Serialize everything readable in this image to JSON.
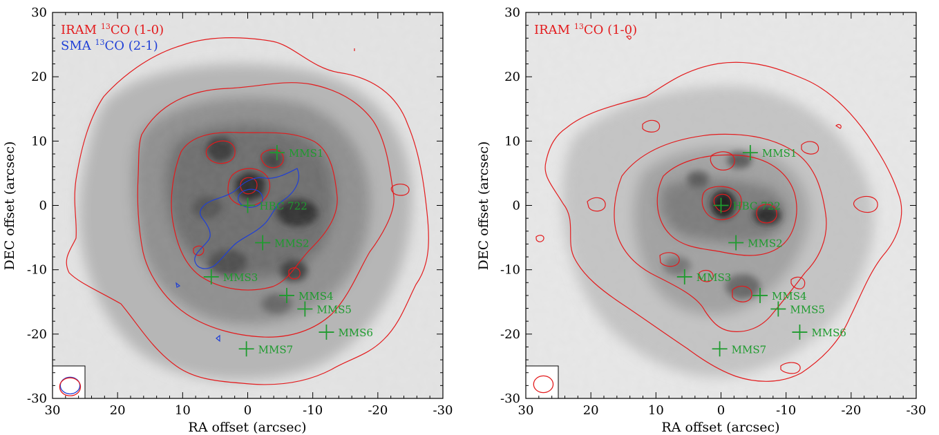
{
  "chart_data": [
    {
      "type": "contour-map",
      "title": "",
      "xlabel": "RA offset (arcsec)",
      "ylabel": "DEC offset (arcsec)",
      "xlim": [
        30,
        -30
      ],
      "ylim": [
        -30,
        30
      ],
      "x_reversed": true,
      "xticks": [
        30,
        20,
        10,
        0,
        -10,
        -20,
        -30
      ],
      "yticks": [
        -30,
        -20,
        -10,
        0,
        10,
        20,
        30
      ],
      "xtick_labels": [
        "30",
        "20",
        "10",
        "0",
        "-10",
        "-20",
        "-30"
      ],
      "ytick_labels": [
        "-30",
        "-20",
        "-10",
        "0",
        "10",
        "20",
        "30"
      ],
      "grid": false,
      "legend": [
        {
          "label_main": "IRAM ",
          "label_sup": "13",
          "label_end": "CO (1-0)",
          "color": "#e31a1c"
        },
        {
          "label_main": "SMA ",
          "label_sup": "13",
          "label_end": "CO (2-1)",
          "color": "#1f3fd6"
        }
      ],
      "sources": [
        {
          "name": "MMS1",
          "x": -4.5,
          "y": 8.2
        },
        {
          "name": "HBC 722",
          "x": 0,
          "y": 0
        },
        {
          "name": "MMS2",
          "x": -2.3,
          "y": -5.8
        },
        {
          "name": "MMS3",
          "x": 5.6,
          "y": -11.1
        },
        {
          "name": "MMS4",
          "x": -6.0,
          "y": -14.0
        },
        {
          "name": "MMS5",
          "x": -8.8,
          "y": -16.1
        },
        {
          "name": "MMS6",
          "x": -12.1,
          "y": -19.7
        },
        {
          "name": "MMS7",
          "x": 0.2,
          "y": -22.3
        }
      ],
      "beams": [
        {
          "color": "#1f3fd6",
          "x": 27.3,
          "y": -28.0,
          "rx": 1.5,
          "ry": 1.3
        },
        {
          "color": "#e31a1c",
          "x": 27.3,
          "y": -28.2,
          "rx": 1.6,
          "ry": 1.4
        }
      ],
      "marker_color": "#1e9b2e",
      "contour_color": "#e31a1c"
    },
    {
      "type": "contour-map",
      "title": "",
      "xlabel": "RA offset (arcsec)",
      "ylabel": "DEC offset (arcsec)",
      "xlim": [
        30,
        -30
      ],
      "ylim": [
        -30,
        30
      ],
      "x_reversed": true,
      "xticks": [
        30,
        20,
        10,
        0,
        -10,
        -20,
        -30
      ],
      "yticks": [
        -30,
        -20,
        -10,
        0,
        10,
        20,
        30
      ],
      "xtick_labels": [
        "30",
        "20",
        "10",
        "0",
        "-10",
        "-20",
        "-30"
      ],
      "ytick_labels": [
        "-30",
        "-20",
        "-10",
        "0",
        "10",
        "20",
        "30"
      ],
      "grid": false,
      "legend": [
        {
          "label_main": "IRAM ",
          "label_sup": "13",
          "label_end": "CO (1-0)",
          "color": "#e31a1c"
        }
      ],
      "sources": [
        {
          "name": "MMS1",
          "x": -4.5,
          "y": 8.2
        },
        {
          "name": "HBC 722",
          "x": 0,
          "y": 0
        },
        {
          "name": "MMS2",
          "x": -2.3,
          "y": -5.8
        },
        {
          "name": "MMS3",
          "x": 5.6,
          "y": -11.1
        },
        {
          "name": "MMS4",
          "x": -6.0,
          "y": -14.0
        },
        {
          "name": "MMS5",
          "x": -8.8,
          "y": -16.1
        },
        {
          "name": "MMS6",
          "x": -12.1,
          "y": -19.7
        },
        {
          "name": "MMS7",
          "x": 0.2,
          "y": -22.3
        }
      ],
      "beams": [
        {
          "color": "#e31a1c",
          "x": 27.3,
          "y": -27.8,
          "rx": 1.5,
          "ry": 1.3
        }
      ],
      "marker_color": "#1e9b2e",
      "contour_color": "#e31a1c"
    }
  ]
}
